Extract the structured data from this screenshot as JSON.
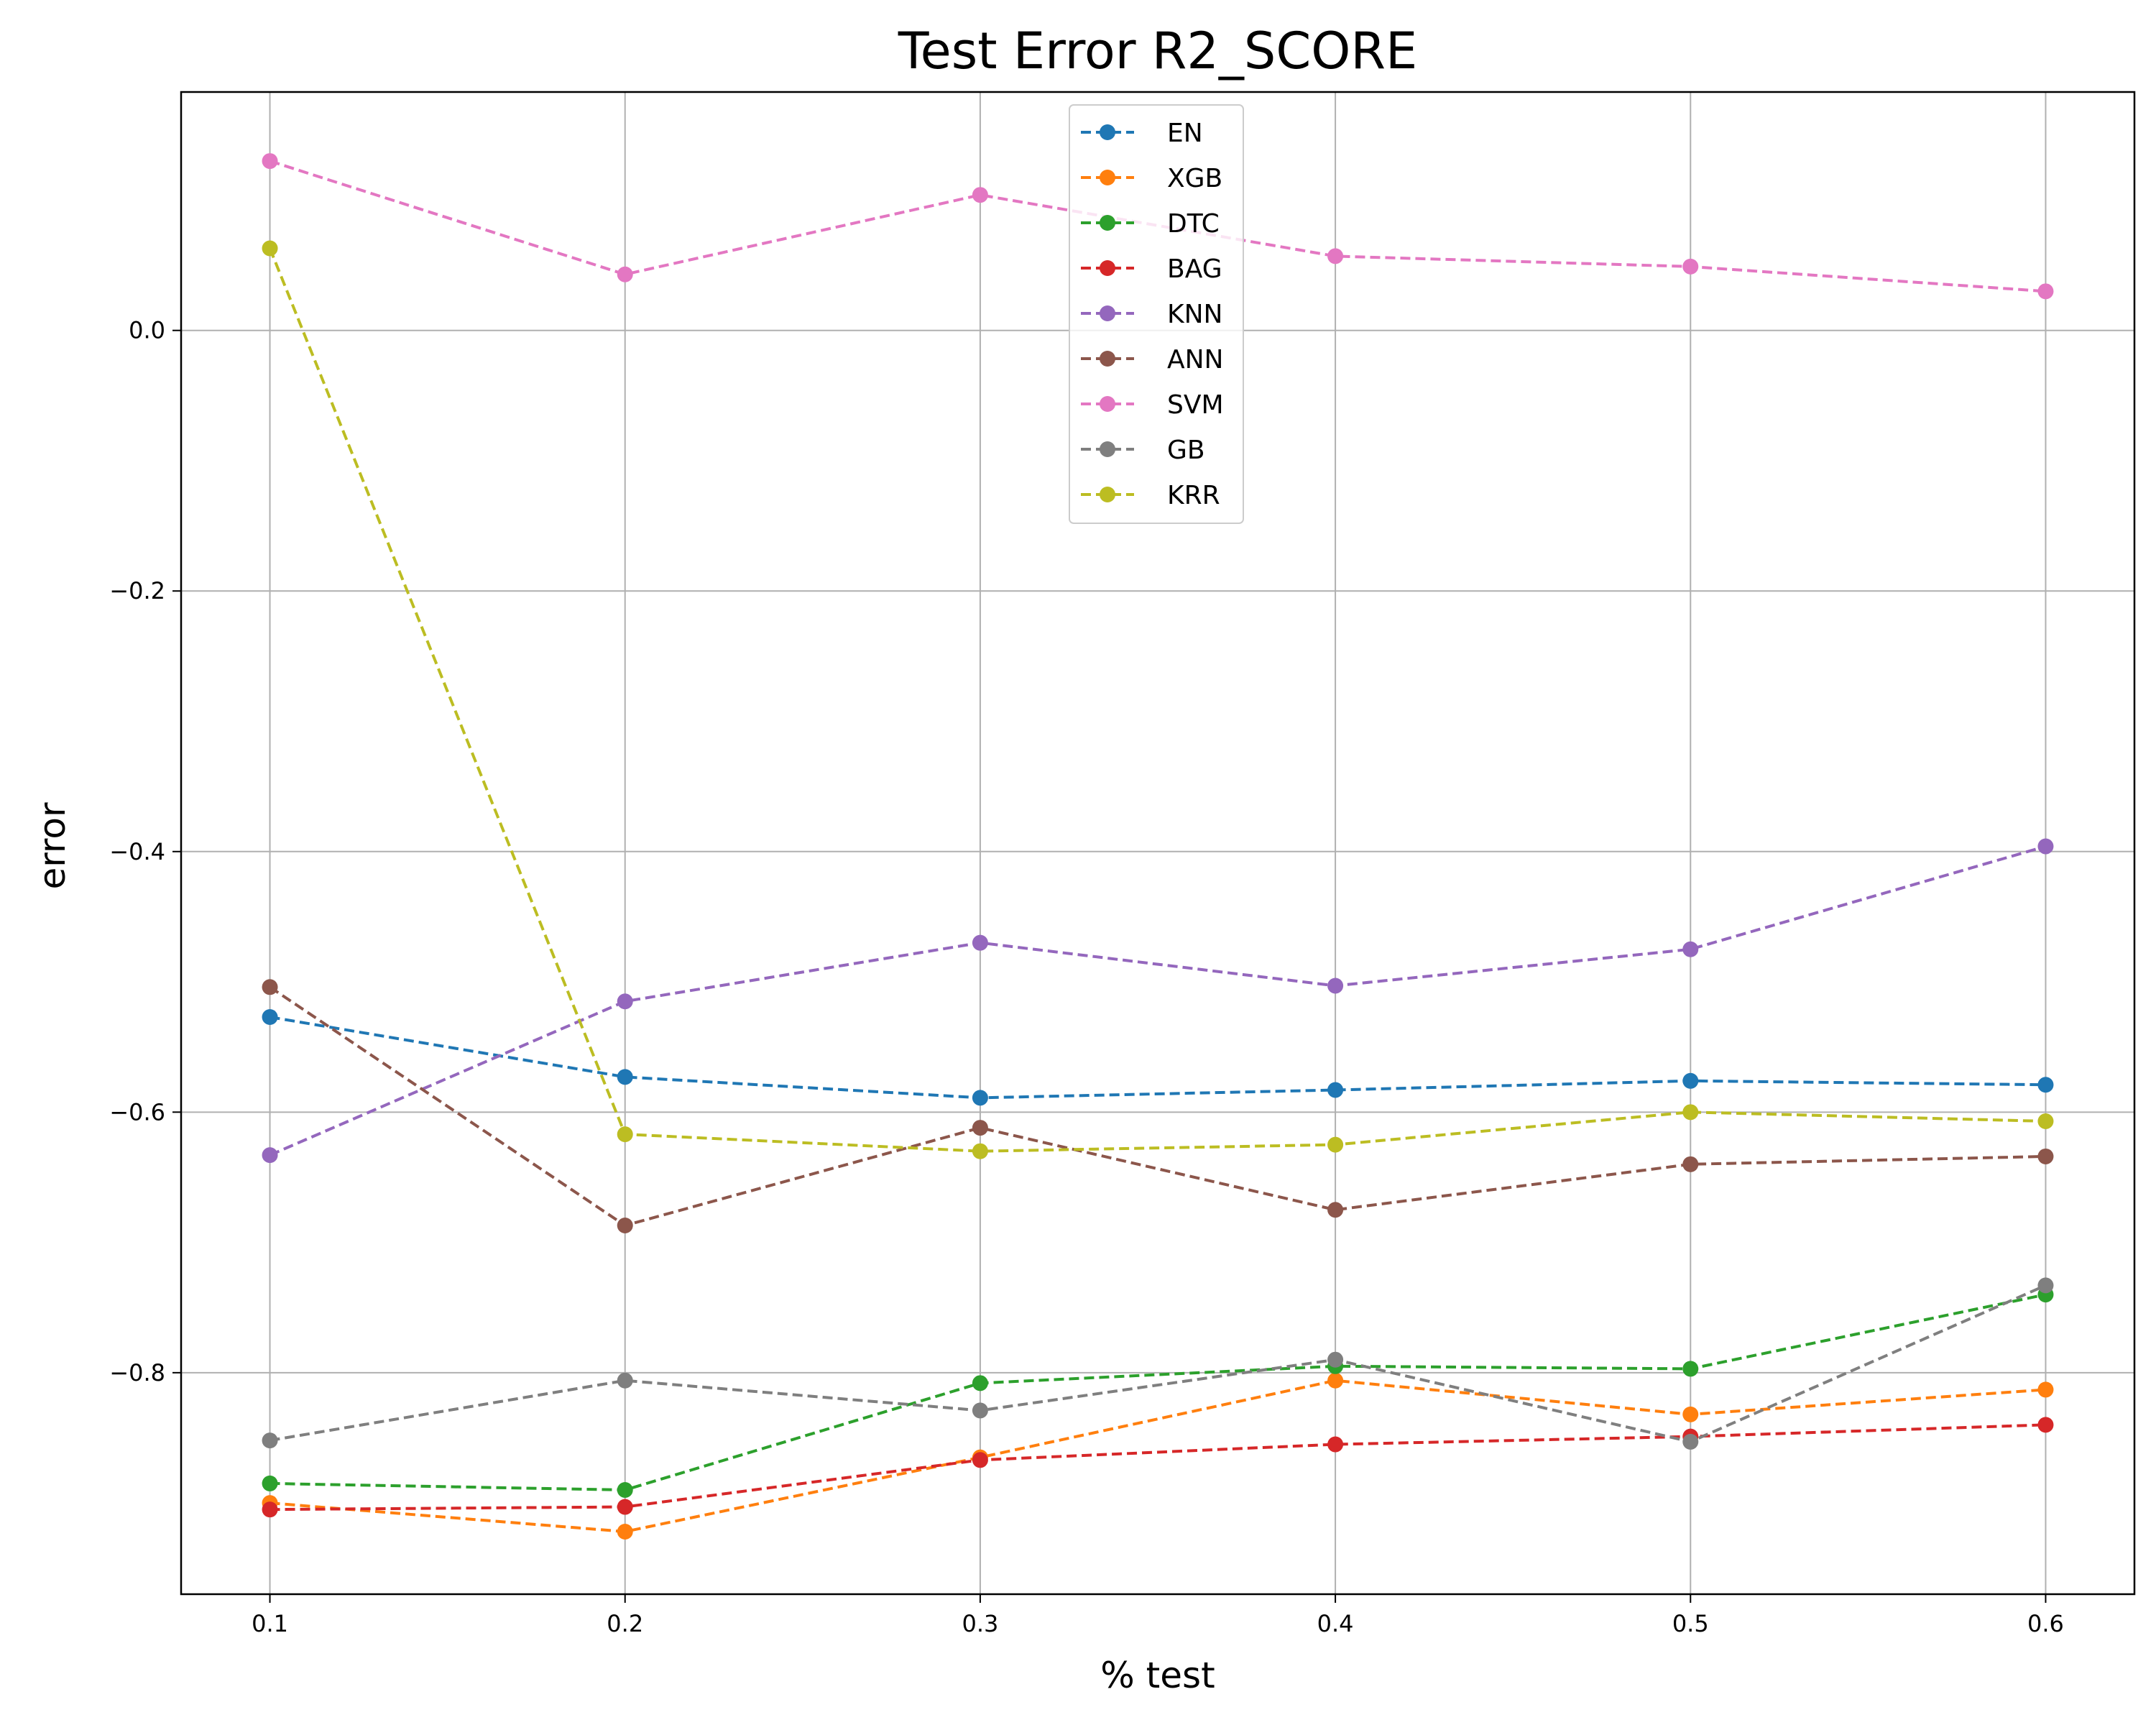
{
  "chart_data": {
    "type": "line",
    "title": "Test Error R2_SCORE",
    "xlabel": "% test",
    "ylabel": "error",
    "x": [
      0.1,
      0.2,
      0.3,
      0.4,
      0.5,
      0.6
    ],
    "x_ticks": [
      "0.1",
      "0.2",
      "0.3",
      "0.4",
      "0.5",
      "0.6"
    ],
    "y_ticks": [
      "0.0",
      "−0.2",
      "−0.4",
      "−0.6",
      "−0.8"
    ],
    "y_tick_values": [
      0.0,
      -0.2,
      -0.4,
      -0.6,
      -0.8
    ],
    "xlim": [
      0.075,
      0.625
    ],
    "ylim": [
      -0.97,
      0.183
    ],
    "grid": true,
    "line_style": "dashed",
    "marker": "circle",
    "legend_position": "upper-center",
    "series": [
      {
        "name": "EN",
        "color": "#1f77b4",
        "values": [
          -0.527,
          -0.573,
          -0.589,
          -0.583,
          -0.576,
          -0.579
        ]
      },
      {
        "name": "XGB",
        "color": "#ff7f0e",
        "values": [
          -0.9,
          -0.922,
          -0.865,
          -0.806,
          -0.832,
          -0.813
        ]
      },
      {
        "name": "DTC",
        "color": "#2ca02c",
        "values": [
          -0.885,
          -0.89,
          -0.808,
          -0.795,
          -0.797,
          -0.74
        ]
      },
      {
        "name": "BAG",
        "color": "#d62728",
        "values": [
          -0.905,
          -0.903,
          -0.867,
          -0.855,
          -0.849,
          -0.84
        ]
      },
      {
        "name": "KNN",
        "color": "#9467bd",
        "values": [
          -0.633,
          -0.515,
          -0.47,
          -0.503,
          -0.475,
          -0.396
        ]
      },
      {
        "name": "ANN",
        "color": "#8c564b",
        "values": [
          -0.504,
          -0.687,
          -0.612,
          -0.675,
          -0.64,
          -0.634
        ]
      },
      {
        "name": "SVM",
        "color": "#e377c2",
        "values": [
          0.13,
          0.043,
          0.104,
          0.057,
          0.049,
          0.03
        ]
      },
      {
        "name": "GB",
        "color": "#7f7f7f",
        "values": [
          -0.852,
          -0.806,
          -0.829,
          -0.79,
          -0.853,
          -0.733
        ]
      },
      {
        "name": "KRR",
        "color": "#bcbd22",
        "values": [
          0.063,
          -0.617,
          -0.63,
          -0.625,
          -0.6,
          -0.607
        ]
      }
    ]
  }
}
